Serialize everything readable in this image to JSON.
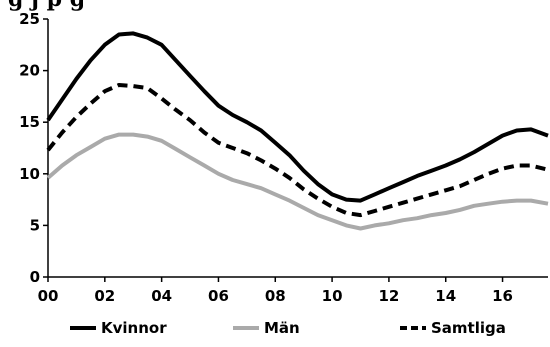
{
  "chart_data": {
    "type": "line",
    "title": "g                  j p     g",
    "xlabel": "",
    "ylabel": "",
    "xlim": [
      0,
      17.6
    ],
    "ylim": [
      0,
      25
    ],
    "x_ticks": [
      0,
      2,
      4,
      6,
      8,
      10,
      12,
      14,
      16
    ],
    "x_tick_labels": [
      "00",
      "02",
      "04",
      "06",
      "08",
      "10",
      "12",
      "14",
      "16"
    ],
    "y_ticks": [
      0,
      5,
      10,
      15,
      20,
      25
    ],
    "y_tick_labels": [
      "0",
      "5",
      "10",
      "15",
      "20",
      "25"
    ],
    "grid": false,
    "legend": "bottom",
    "x": [
      0,
      0.5,
      1,
      1.5,
      2,
      2.5,
      3,
      3.5,
      4,
      4.5,
      5,
      5.5,
      6,
      6.5,
      7,
      7.5,
      8,
      8.5,
      9,
      9.5,
      10,
      10.5,
      11,
      11.5,
      12,
      12.5,
      13,
      13.5,
      14,
      14.5,
      15,
      15.5,
      16,
      16.5,
      17,
      17.6
    ],
    "series": [
      {
        "name": "Kvinnor",
        "color": "#000000",
        "dash": "solid",
        "values": [
          15.2,
          17.2,
          19.2,
          21.0,
          22.5,
          23.5,
          23.6,
          23.2,
          22.5,
          21.0,
          19.5,
          18.0,
          16.6,
          15.7,
          15.0,
          14.2,
          13.0,
          11.8,
          10.3,
          9.0,
          8.0,
          7.5,
          7.4,
          8.0,
          8.6,
          9.2,
          9.8,
          10.3,
          10.8,
          11.4,
          12.1,
          12.9,
          13.7,
          14.2,
          14.3,
          13.7
        ]
      },
      {
        "name": "Män",
        "color": "#aaaaaa",
        "dash": "solid",
        "values": [
          9.6,
          10.8,
          11.8,
          12.6,
          13.4,
          13.8,
          13.8,
          13.6,
          13.2,
          12.4,
          11.6,
          10.8,
          10.0,
          9.4,
          9.0,
          8.6,
          8.0,
          7.4,
          6.7,
          6.0,
          5.5,
          5.0,
          4.7,
          5.0,
          5.2,
          5.5,
          5.7,
          6.0,
          6.2,
          6.5,
          6.9,
          7.1,
          7.3,
          7.4,
          7.4,
          7.1
        ]
      },
      {
        "name": "Samtliga",
        "color": "#000000",
        "dash": "dashed",
        "values": [
          12.3,
          14.0,
          15.5,
          16.8,
          18.0,
          18.6,
          18.5,
          18.3,
          17.3,
          16.2,
          15.2,
          14.0,
          13.0,
          12.5,
          12.0,
          11.3,
          10.5,
          9.6,
          8.5,
          7.6,
          6.8,
          6.2,
          6.0,
          6.4,
          6.8,
          7.2,
          7.6,
          8.0,
          8.4,
          8.8,
          9.4,
          10.0,
          10.5,
          10.8,
          10.8,
          10.4
        ]
      }
    ]
  }
}
